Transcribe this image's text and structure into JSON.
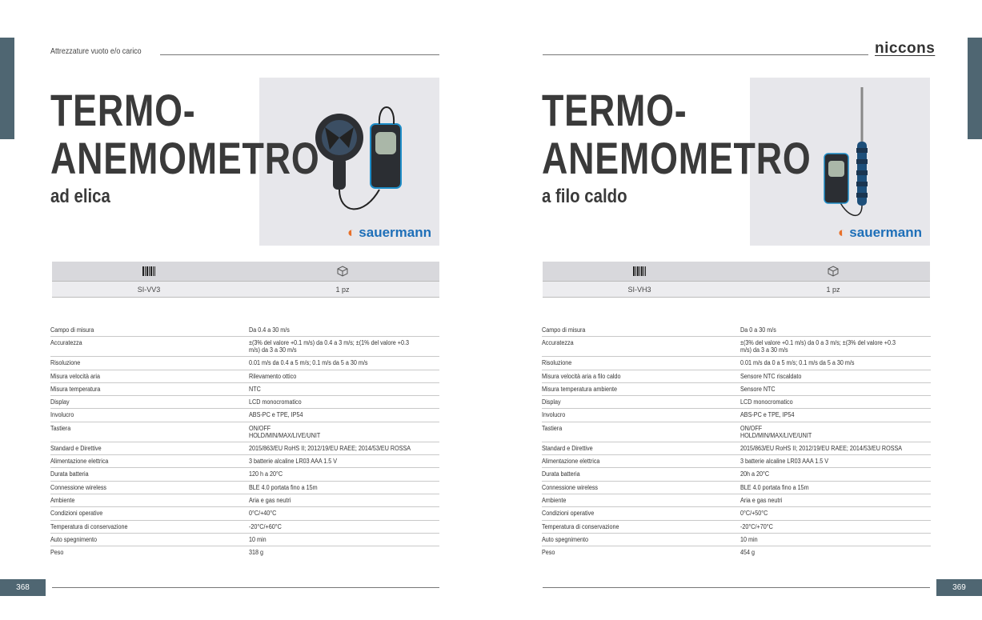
{
  "accent": "#4f6672",
  "brand_color": "#1e6fb8",
  "left": {
    "section": "Attrezzature vuoto e/o carico",
    "title_1": "TERMO-",
    "title_2": "ANEMOMETRO",
    "subtitle": "ad elica",
    "brand": "sauermann",
    "code_icon": "barcode-icon",
    "pack_icon": "package-icon",
    "code": "SI-VV3",
    "pack": "1 pz",
    "page_number": "368",
    "specs": [
      {
        "label": "Campo di misura",
        "value": "Da 0.4 a 30 m/s"
      },
      {
        "label": "Accuratezza",
        "value": "±(3% del valore +0.1 m/s) da 0.4 a 3 m/s; ±(1% del valore +0.3 m/s) da 3 a 30 m/s"
      },
      {
        "label": "Risoluzione",
        "value": "0.01 m/s da 0.4 a 5 m/s; 0.1 m/s da 5 a 30 m/s"
      },
      {
        "label": "Misura velocità aria",
        "value": "Rilevamento ottico"
      },
      {
        "label": "Misura temperatura",
        "value": "NTC"
      },
      {
        "label": "Display",
        "value": "LCD monocromatico"
      },
      {
        "label": "Involucro",
        "value": "ABS-PC e TPE, IP54"
      },
      {
        "label": "Tastiera",
        "value": "ON/OFF\nHOLD/MIN/MAX/LIVE/UNIT"
      },
      {
        "label": "Standard e Direttive",
        "value": "2015/863/EU RoHS II; 2012/19/EU RAEE; 2014/53/EU ROSSA"
      },
      {
        "label": "Alimentazione elettrica",
        "value": "3 batterie alcaline LR03 AAA 1.5 V"
      },
      {
        "label": "Durata batteria",
        "value": "120 h a 20°C"
      },
      {
        "label": "Connessione wireless",
        "value": "BLE 4.0 portata fino a 15m"
      },
      {
        "label": "Ambiente",
        "value": "Aria e gas neutri"
      },
      {
        "label": "Condizioni operative",
        "value": "0°C/+40°C"
      },
      {
        "label": "Temperatura di conservazione",
        "value": "-20°C/+60°C"
      },
      {
        "label": "Auto spegnimento",
        "value": "10 min"
      },
      {
        "label": "Peso",
        "value": "318 g"
      }
    ]
  },
  "right": {
    "logo": "niccons",
    "title_1": "TERMO-",
    "title_2": "ANEMOMETRO",
    "subtitle": "a filo caldo",
    "brand": "sauermann",
    "code_icon": "barcode-icon",
    "pack_icon": "package-icon",
    "code": "SI-VH3",
    "pack": "1 pz",
    "page_number": "369",
    "specs": [
      {
        "label": "Campo di misura",
        "value": "Da 0 a 30 m/s"
      },
      {
        "label": "Accuratezza",
        "value": "±(3% del valore +0.1 m/s) da 0 a 3 m/s; ±(3% del valore +0.3 m/s) da 3 a 30 m/s"
      },
      {
        "label": "Risoluzione",
        "value": "0.01 m/s da 0 a 5 m/s; 0.1 m/s da 5 a 30 m/s"
      },
      {
        "label": "Misura velocità aria a filo caldo",
        "value": "Sensore NTC riscaldato"
      },
      {
        "label": "Misura temperatura ambiente",
        "value": "Sensore NTC"
      },
      {
        "label": "Display",
        "value": "LCD monocromatico"
      },
      {
        "label": "Involucro",
        "value": "ABS-PC e TPE, IP54"
      },
      {
        "label": "Tastiera",
        "value": "ON/OFF\nHOLD/MIN/MAX/LIVE/UNIT"
      },
      {
        "label": "Standard e Direttive",
        "value": "2015/863/EU RoHS II; 2012/19/EU RAEE; 2014/53/EU ROSSA"
      },
      {
        "label": "Alimentazione elettrica",
        "value": "3 batterie alcaline LR03 AAA 1.5 V"
      },
      {
        "label": "Durata batteria",
        "value": "20h a 20°C"
      },
      {
        "label": "Connessione wireless",
        "value": "BLE 4.0 portata fino a 15m"
      },
      {
        "label": "Ambiente",
        "value": "Aria e gas neutri"
      },
      {
        "label": "Condizioni operative",
        "value": "0°C/+50°C"
      },
      {
        "label": "Temperatura di conservazione",
        "value": "-20°C/+70°C"
      },
      {
        "label": "Auto spegnimento",
        "value": "10 min"
      },
      {
        "label": "Peso",
        "value": "454 g"
      }
    ]
  }
}
